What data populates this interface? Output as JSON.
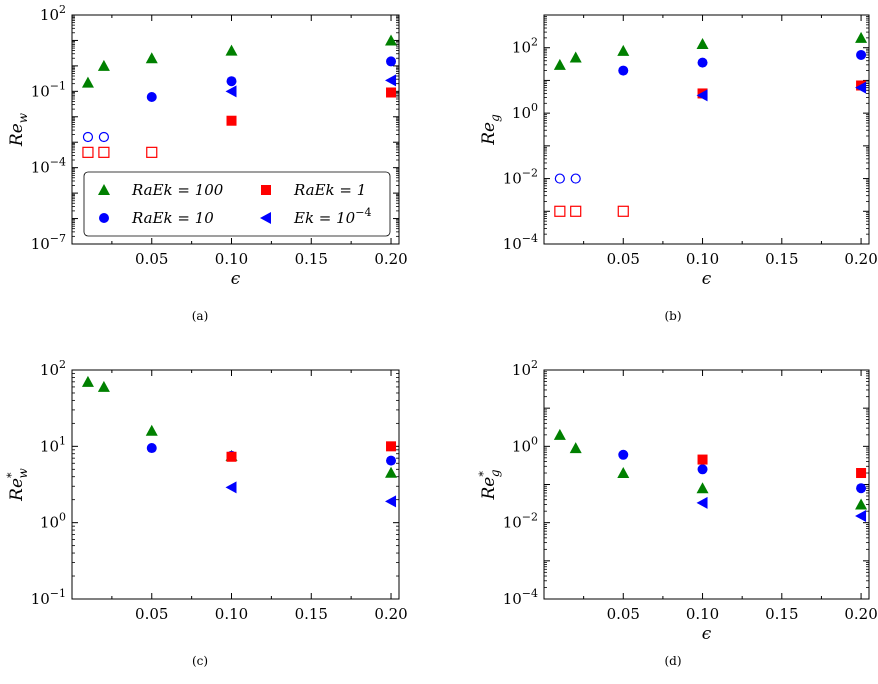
{
  "colors": {
    "triangle_up": "#008000",
    "circle": "#0000ff",
    "square": "#ff0000",
    "triangle_left": "#0000ff"
  },
  "legend": {
    "entries": [
      {
        "marker": "triangle_up",
        "color": "#008000",
        "label": "RaEk = 100"
      },
      {
        "marker": "square",
        "color": "#ff0000",
        "label": "RaEk = 1"
      },
      {
        "marker": "circle",
        "color": "#0000ff",
        "label": "RaEk = 10"
      },
      {
        "marker": "triangle_left",
        "color": "#0000ff",
        "label": "Ek = 10",
        "label_sup": "−4"
      }
    ]
  },
  "chart_data": [
    {
      "type": "scatter",
      "panel": "(a)",
      "xlabel": "ϵ",
      "ylabel": {
        "base": "Re",
        "sub": "w",
        "sup": ""
      },
      "yscale": "log",
      "ylim": [
        1e-07,
        100
      ],
      "xlim": [
        0.0,
        0.205
      ],
      "xticks": [
        "0.05",
        "0.10",
        "0.15",
        "0.20"
      ],
      "yticks": [
        {
          "base": "10",
          "exp": "2"
        },
        {
          "base": "10",
          "exp": "−1"
        },
        {
          "base": "10",
          "exp": "−4"
        },
        {
          "base": "10",
          "exp": "−7"
        }
      ],
      "series": [
        {
          "name": "RaEk = 100",
          "marker": "triangle_up",
          "filled": true,
          "points": [
            [
              0.01,
              0.22
            ],
            [
              0.02,
              1.0
            ],
            [
              0.05,
              2.0
            ],
            [
              0.1,
              4.0
            ],
            [
              0.2,
              10.0
            ]
          ]
        },
        {
          "name": "RaEk = 10",
          "marker": "circle",
          "filled": true,
          "points": [
            [
              0.05,
              0.06
            ],
            [
              0.1,
              0.25
            ],
            [
              0.2,
              1.5
            ]
          ]
        },
        {
          "name": "RaEk = 1",
          "marker": "square",
          "filled": true,
          "points": [
            [
              0.1,
              0.007
            ],
            [
              0.2,
              0.09
            ]
          ]
        },
        {
          "name": "Ek = 10^-4",
          "marker": "triangle_left",
          "filled": true,
          "points": [
            [
              0.1,
              0.1
            ],
            [
              0.2,
              0.27
            ]
          ]
        },
        {
          "marker": "circle",
          "filled": false,
          "points": [
            [
              0.01,
              0.0016
            ],
            [
              0.02,
              0.0016
            ]
          ]
        },
        {
          "marker": "square",
          "filled": false,
          "points": [
            [
              0.01,
              0.0004
            ],
            [
              0.02,
              0.0004
            ],
            [
              0.05,
              0.0004
            ]
          ]
        }
      ]
    },
    {
      "type": "scatter",
      "panel": "(b)",
      "xlabel": "ϵ",
      "ylabel": {
        "base": "Re",
        "sub": "g",
        "sup": ""
      },
      "yscale": "log",
      "ylim": [
        0.0001,
        1000
      ],
      "xlim": [
        0.0,
        0.205
      ],
      "xticks": [
        "0.05",
        "0.10",
        "0.15",
        "0.20"
      ],
      "yticks": [
        {
          "base": "10",
          "exp": "2"
        },
        {
          "base": "10",
          "exp": "0"
        },
        {
          "base": "10",
          "exp": "−2"
        },
        {
          "base": "10",
          "exp": "−4"
        }
      ],
      "series": [
        {
          "marker": "triangle_up",
          "filled": true,
          "points": [
            [
              0.01,
              30.0
            ],
            [
              0.02,
              50.0
            ],
            [
              0.05,
              80.0
            ],
            [
              0.1,
              130.0
            ],
            [
              0.2,
              200.0
            ]
          ]
        },
        {
          "marker": "circle",
          "filled": true,
          "points": [
            [
              0.05,
              20.0
            ],
            [
              0.1,
              35.0
            ],
            [
              0.2,
              60.0
            ]
          ]
        },
        {
          "marker": "square",
          "filled": true,
          "points": [
            [
              0.1,
              4.0
            ],
            [
              0.2,
              7.0
            ]
          ]
        },
        {
          "marker": "triangle_left",
          "filled": true,
          "points": [
            [
              0.1,
              3.5
            ],
            [
              0.2,
              6.0
            ]
          ]
        },
        {
          "marker": "circle",
          "filled": false,
          "points": [
            [
              0.01,
              0.01
            ],
            [
              0.02,
              0.01
            ]
          ]
        },
        {
          "marker": "square",
          "filled": false,
          "points": [
            [
              0.01,
              0.001
            ],
            [
              0.02,
              0.001
            ],
            [
              0.05,
              0.001
            ]
          ]
        }
      ]
    },
    {
      "type": "scatter",
      "panel": "(c)",
      "xlabel": "",
      "ylabel": {
        "base": "Re",
        "sub": "w",
        "sup": "*"
      },
      "yscale": "log",
      "ylim": [
        0.1,
        100
      ],
      "xlim": [
        0.0,
        0.205
      ],
      "xticks": [
        "0.05",
        "0.10",
        "0.15",
        "0.20"
      ],
      "yticks": [
        {
          "base": "10",
          "exp": "2"
        },
        {
          "base": "10",
          "exp": "1"
        },
        {
          "base": "10",
          "exp": "0"
        },
        {
          "base": "10",
          "exp": "−1"
        }
      ],
      "series": [
        {
          "marker": "triangle_up",
          "filled": true,
          "points": [
            [
              0.01,
              70.0
            ],
            [
              0.02,
              60.0
            ],
            [
              0.05,
              16.0
            ],
            [
              0.1,
              7.5
            ],
            [
              0.2,
              4.5
            ]
          ]
        },
        {
          "marker": "circle",
          "filled": true,
          "points": [
            [
              0.05,
              9.5
            ],
            [
              0.1,
              7.5
            ],
            [
              0.2,
              6.5
            ]
          ]
        },
        {
          "marker": "square",
          "filled": true,
          "points": [
            [
              0.1,
              7.3
            ],
            [
              0.2,
              10.0
            ]
          ]
        },
        {
          "marker": "triangle_left",
          "filled": true,
          "points": [
            [
              0.1,
              2.9
            ],
            [
              0.2,
              1.9
            ]
          ]
        }
      ]
    },
    {
      "type": "scatter",
      "panel": "(d)",
      "xlabel": "ϵ",
      "ylabel": {
        "base": "Re",
        "sub": "g",
        "sup": "*"
      },
      "yscale": "log",
      "ylim": [
        0.0001,
        100
      ],
      "xlim": [
        0.0,
        0.205
      ],
      "xticks": [
        "0.05",
        "0.10",
        "0.15",
        "0.20"
      ],
      "yticks": [
        {
          "base": "10",
          "exp": "2"
        },
        {
          "base": "10",
          "exp": "0"
        },
        {
          "base": "10",
          "exp": "−2"
        },
        {
          "base": "10",
          "exp": "−4"
        }
      ],
      "series": [
        {
          "marker": "triangle_up",
          "filled": true,
          "points": [
            [
              0.01,
              2.0
            ],
            [
              0.02,
              0.9
            ],
            [
              0.05,
              0.2
            ],
            [
              0.1,
              0.08
            ],
            [
              0.2,
              0.03
            ]
          ]
        },
        {
          "marker": "circle",
          "filled": true,
          "points": [
            [
              0.05,
              0.6
            ],
            [
              0.1,
              0.25
            ],
            [
              0.2,
              0.08
            ]
          ]
        },
        {
          "marker": "square",
          "filled": true,
          "points": [
            [
              0.1,
              0.45
            ],
            [
              0.2,
              0.2
            ]
          ]
        },
        {
          "marker": "triangle_left",
          "filled": true,
          "points": [
            [
              0.1,
              0.033
            ],
            [
              0.2,
              0.015
            ]
          ]
        }
      ]
    }
  ]
}
